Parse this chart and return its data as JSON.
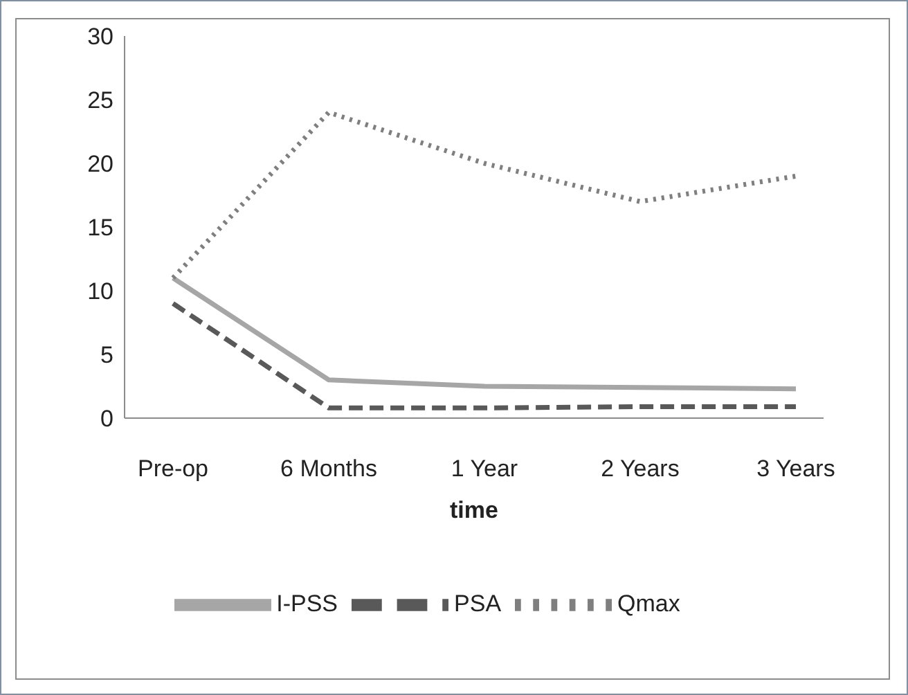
{
  "chart_data": {
    "type": "line",
    "xlabel": "time",
    "categories": [
      "Pre-op",
      "6 Months",
      "1 Year",
      "2 Years",
      "3 Years"
    ],
    "ylim": [
      0,
      30
    ],
    "yticks": [
      0,
      5,
      10,
      15,
      20,
      25,
      30
    ],
    "grid": false,
    "legend": "bottom",
    "marker": "none",
    "series": [
      {
        "name": "PSA",
        "color": "#595959",
        "line_style": "dashed",
        "values": [
          9,
          0.8,
          0.8,
          0.9,
          0.9
        ]
      },
      {
        "name": "I-PSS",
        "color": "#a6a6a6",
        "line_style": "solid",
        "values": [
          11,
          3,
          2.5,
          2.4,
          2.3
        ]
      },
      {
        "name": "Qmax",
        "color": "#7f7f7f",
        "line_style": "dotted",
        "values": [
          11,
          24,
          20,
          17,
          19
        ]
      }
    ]
  }
}
